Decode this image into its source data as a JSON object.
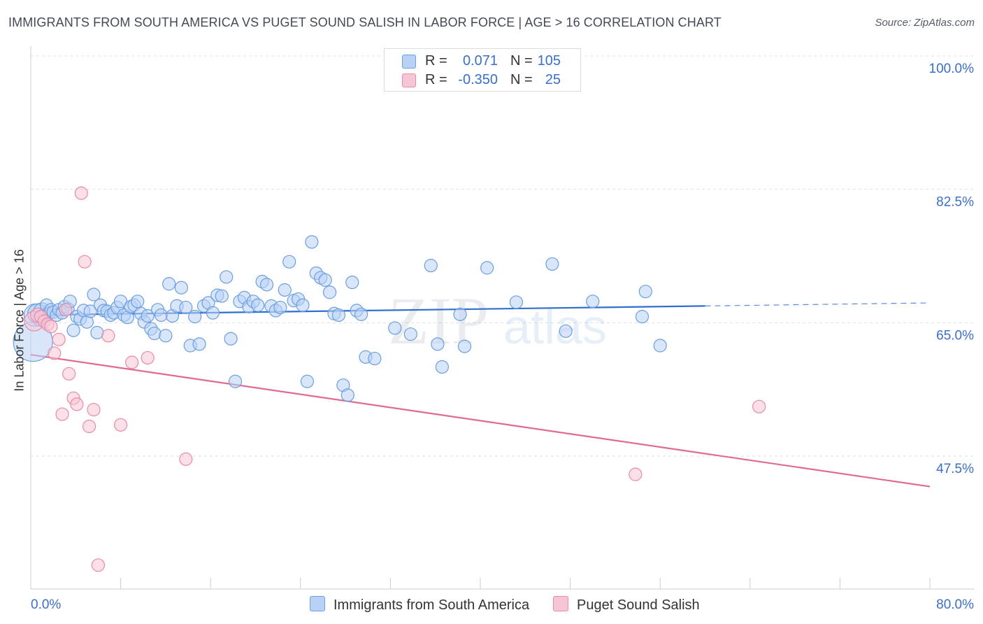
{
  "title": "IMMIGRANTS FROM SOUTH AMERICA VS PUGET SOUND SALISH IN LABOR FORCE | AGE > 16 CORRELATION CHART",
  "source": "Source: ZipAtlas.com",
  "watermark": {
    "part1": "ZIP",
    "part2": "atlas"
  },
  "colors": {
    "blue": "#6a9fe0",
    "blue_fill": "#b9d1f5",
    "blue_line": "#2f6fce",
    "pink": "#e88aa8",
    "pink_fill": "#f7c6d6",
    "pink_line": "#e06a93",
    "axis_label": "#3a6fc7"
  },
  "legend": [
    {
      "r_label": "R =",
      "r_value": "0.071",
      "n_label": "N =",
      "n_value": "105"
    },
    {
      "r_label": "R =",
      "r_value": "-0.350",
      "n_label": "N =",
      "n_value": "25"
    }
  ],
  "chart_data": {
    "type": "scatter",
    "title": "IMMIGRANTS FROM SOUTH AMERICA VS PUGET SOUND SALISH IN LABOR FORCE | AGE > 16 CORRELATION CHART",
    "xlabel": "",
    "ylabel": "In Labor Force | Age > 16",
    "xlim": [
      0,
      80
    ],
    "ylim": [
      32,
      101
    ],
    "x_tick_labels": [
      "0.0%",
      "80.0%"
    ],
    "y_ticks": [
      {
        "value": 100.0,
        "label": "100.0%"
      },
      {
        "value": 82.5,
        "label": "82.5%"
      },
      {
        "value": 65.0,
        "label": "65.0%"
      },
      {
        "value": 47.5,
        "label": "47.5%"
      }
    ],
    "series": [
      {
        "name": "Immigrants from South America",
        "color": "blue",
        "trend": {
          "x0": 0,
          "y0": 66.0,
          "x1": 60,
          "y1": 67.2,
          "dash_x1": 80,
          "dash_y1": 67.6
        },
        "points": [
          [
            0.2,
            62.5,
            28
          ],
          [
            0.4,
            66.0,
            16
          ],
          [
            0.6,
            66.2,
            14
          ],
          [
            0.8,
            65.5,
            10
          ],
          [
            1.0,
            66.5,
            12
          ],
          [
            1.2,
            66.0,
            9
          ],
          [
            1.4,
            67.3,
            9
          ],
          [
            1.6,
            66.2,
            9
          ],
          [
            1.8,
            66.7,
            9
          ],
          [
            2.0,
            66.4,
            9
          ],
          [
            2.3,
            66.0,
            9
          ],
          [
            2.5,
            66.7,
            9
          ],
          [
            2.8,
            66.3,
            9
          ],
          [
            3.0,
            67.1,
            9
          ],
          [
            3.3,
            66.8,
            9
          ],
          [
            3.5,
            67.8,
            9
          ],
          [
            3.8,
            64.0,
            9
          ],
          [
            4.1,
            65.8,
            9
          ],
          [
            4.4,
            65.5,
            9
          ],
          [
            4.7,
            66.6,
            9
          ],
          [
            5.0,
            65.1,
            9
          ],
          [
            5.3,
            66.5,
            9
          ],
          [
            5.6,
            68.7,
            9
          ],
          [
            5.9,
            63.7,
            9
          ],
          [
            6.2,
            67.3,
            9
          ],
          [
            6.5,
            66.6,
            9
          ],
          [
            6.8,
            66.5,
            9
          ],
          [
            7.1,
            66.0,
            9
          ],
          [
            7.4,
            66.3,
            9
          ],
          [
            7.7,
            67.0,
            9
          ],
          [
            8.0,
            67.8,
            9
          ],
          [
            8.3,
            66.0,
            9
          ],
          [
            8.6,
            65.7,
            9
          ],
          [
            8.9,
            67.1,
            9
          ],
          [
            9.2,
            67.3,
            9
          ],
          [
            9.5,
            67.8,
            9
          ],
          [
            9.8,
            66.2,
            9
          ],
          [
            10.1,
            65.1,
            9
          ],
          [
            10.4,
            65.9,
            9
          ],
          [
            10.7,
            64.2,
            9
          ],
          [
            11.0,
            63.6,
            9
          ],
          [
            11.3,
            66.7,
            9
          ],
          [
            11.6,
            66.0,
            9
          ],
          [
            12.0,
            63.3,
            9
          ],
          [
            12.3,
            70.1,
            9
          ],
          [
            12.6,
            65.9,
            9
          ],
          [
            13.0,
            67.2,
            9
          ],
          [
            13.4,
            69.6,
            9
          ],
          [
            13.8,
            67.0,
            9
          ],
          [
            14.2,
            62.0,
            9
          ],
          [
            14.6,
            65.8,
            9
          ],
          [
            15.0,
            62.2,
            9
          ],
          [
            15.4,
            67.2,
            9
          ],
          [
            15.8,
            67.6,
            9
          ],
          [
            16.2,
            66.3,
            9
          ],
          [
            16.6,
            68.6,
            9
          ],
          [
            17.0,
            68.5,
            9
          ],
          [
            17.4,
            71.0,
            9
          ],
          [
            17.8,
            62.9,
            9
          ],
          [
            18.2,
            57.3,
            9
          ],
          [
            18.6,
            67.8,
            9
          ],
          [
            19.0,
            68.3,
            9
          ],
          [
            19.4,
            67.1,
            9
          ],
          [
            19.8,
            67.8,
            9
          ],
          [
            20.2,
            67.3,
            9
          ],
          [
            20.6,
            70.4,
            9
          ],
          [
            21.0,
            70.0,
            9
          ],
          [
            21.4,
            67.2,
            9
          ],
          [
            21.8,
            66.6,
            9
          ],
          [
            22.2,
            67.0,
            9
          ],
          [
            22.6,
            69.3,
            9
          ],
          [
            23.0,
            73.0,
            9
          ],
          [
            23.4,
            67.9,
            9
          ],
          [
            23.8,
            68.1,
            9
          ],
          [
            24.2,
            67.3,
            9
          ],
          [
            24.6,
            57.3,
            9
          ],
          [
            25.0,
            75.6,
            9
          ],
          [
            25.4,
            71.5,
            9
          ],
          [
            25.8,
            70.9,
            9
          ],
          [
            26.2,
            70.6,
            9
          ],
          [
            26.6,
            69.0,
            9
          ],
          [
            27.0,
            66.2,
            9
          ],
          [
            27.4,
            66.0,
            9
          ],
          [
            27.8,
            56.8,
            9
          ],
          [
            28.2,
            55.5,
            9
          ],
          [
            28.6,
            70.3,
            9
          ],
          [
            29.0,
            66.6,
            9
          ],
          [
            29.4,
            66.1,
            9
          ],
          [
            29.8,
            60.5,
            9
          ],
          [
            30.6,
            60.3,
            9
          ],
          [
            32.4,
            64.3,
            9
          ],
          [
            33.8,
            63.5,
            9
          ],
          [
            35.6,
            72.5,
            9
          ],
          [
            36.2,
            62.2,
            9
          ],
          [
            36.6,
            59.2,
            9
          ],
          [
            38.2,
            66.1,
            9
          ],
          [
            38.6,
            61.9,
            9
          ],
          [
            40.6,
            72.2,
            9
          ],
          [
            43.2,
            67.7,
            9
          ],
          [
            46.4,
            72.7,
            9
          ],
          [
            47.6,
            63.9,
            9
          ],
          [
            50.0,
            67.8,
            9
          ],
          [
            54.4,
            65.8,
            9
          ],
          [
            54.7,
            69.1,
            9
          ],
          [
            56.0,
            62.0,
            9
          ]
        ]
      },
      {
        "name": "Puget Sound Salish",
        "color": "pink",
        "trend": {
          "x0": 0,
          "y0": 60.8,
          "x1": 80,
          "y1": 43.5
        },
        "points": [
          [
            0.3,
            65.2,
            14
          ],
          [
            0.6,
            66.0,
            10
          ],
          [
            0.9,
            65.8,
            9
          ],
          [
            1.2,
            65.2,
            9
          ],
          [
            1.5,
            64.8,
            9
          ],
          [
            1.8,
            64.5,
            9
          ],
          [
            2.1,
            61.0,
            9
          ],
          [
            2.5,
            62.8,
            9
          ],
          [
            2.8,
            53.0,
            9
          ],
          [
            3.1,
            66.7,
            9
          ],
          [
            3.4,
            58.3,
            9
          ],
          [
            3.8,
            55.1,
            9
          ],
          [
            4.1,
            54.3,
            9
          ],
          [
            4.5,
            82.0,
            9
          ],
          [
            4.8,
            73.0,
            9
          ],
          [
            5.2,
            51.4,
            9
          ],
          [
            5.6,
            53.6,
            9
          ],
          [
            6.0,
            33.2,
            9
          ],
          [
            6.9,
            63.3,
            9
          ],
          [
            8.0,
            51.6,
            9
          ],
          [
            9.0,
            59.8,
            9
          ],
          [
            10.4,
            60.4,
            9
          ],
          [
            13.8,
            47.1,
            9
          ],
          [
            53.8,
            45.1,
            9
          ],
          [
            64.8,
            54.0,
            9
          ]
        ]
      }
    ]
  }
}
